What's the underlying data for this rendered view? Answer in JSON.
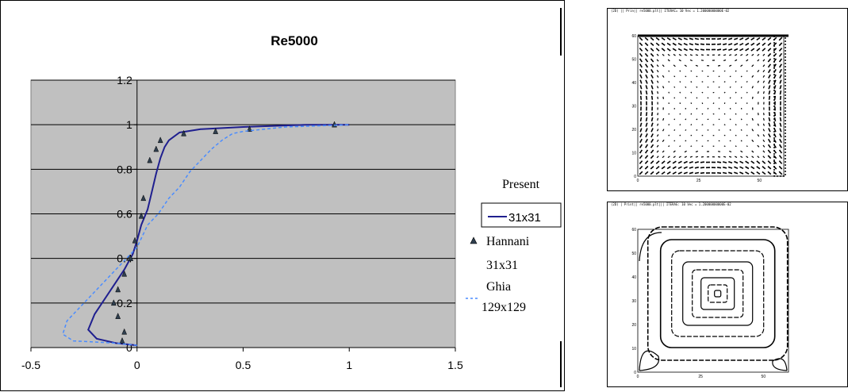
{
  "chart_data": {
    "type": "line",
    "title": "Re5000",
    "xlabel": "",
    "ylabel": "",
    "xlim": [
      -0.5,
      1.5
    ],
    "ylim": [
      0,
      1.2
    ],
    "x_ticks": [
      "-0.5",
      "0",
      "0.5",
      "1",
      "1.5"
    ],
    "y_ticks": [
      "0",
      "0.2",
      "0.4",
      "0.6",
      "0.8",
      "1",
      "1.2"
    ],
    "grid": "horizontal",
    "plot_background": "#c0c0c0",
    "legend_placement": "right",
    "legend_header": "Present",
    "series": [
      {
        "name": "31x31",
        "style": "solid",
        "color": "#1f1f8f",
        "x": [
          0.0,
          -0.1,
          -0.19,
          -0.23,
          -0.2,
          -0.13,
          -0.06,
          -0.02,
          0.0,
          0.02,
          0.05,
          0.07,
          0.09,
          0.11,
          0.13,
          0.15,
          0.2,
          0.3,
          0.5,
          0.8,
          1.0
        ],
        "y": [
          0.01,
          0.02,
          0.04,
          0.08,
          0.15,
          0.25,
          0.35,
          0.42,
          0.48,
          0.55,
          0.62,
          0.7,
          0.78,
          0.85,
          0.9,
          0.93,
          0.965,
          0.98,
          0.99,
          1.0,
          1.0
        ]
      },
      {
        "name": "Hannani 31x31",
        "style": "markers",
        "color": "#2f3f4f",
        "x": [
          -0.07,
          -0.06,
          -0.09,
          -0.11,
          -0.09,
          -0.06,
          -0.03,
          -0.01,
          0.02,
          0.03,
          0.06,
          0.09,
          0.11,
          0.22,
          0.37,
          0.53,
          0.93
        ],
        "y": [
          0.03,
          0.07,
          0.14,
          0.2,
          0.26,
          0.33,
          0.4,
          0.48,
          0.59,
          0.67,
          0.84,
          0.89,
          0.93,
          0.96,
          0.97,
          0.98,
          1.0
        ]
      },
      {
        "name": "Ghia 129x129",
        "style": "dashed",
        "color": "#4a8cff",
        "x": [
          0.0,
          -0.1,
          -0.3,
          -0.35,
          -0.33,
          -0.25,
          -0.15,
          -0.05,
          0.0,
          0.05,
          0.1,
          0.15,
          0.2,
          0.25,
          0.3,
          0.35,
          0.4,
          0.45,
          0.5,
          0.7,
          1.0
        ],
        "y": [
          0.01,
          0.02,
          0.03,
          0.06,
          0.12,
          0.2,
          0.3,
          0.4,
          0.45,
          0.55,
          0.6,
          0.67,
          0.72,
          0.79,
          0.84,
          0.89,
          0.93,
          0.96,
          0.97,
          0.99,
          1.0
        ]
      }
    ],
    "legend": {
      "entries": [
        {
          "label": "31x31",
          "style": "solid"
        },
        {
          "label": "Hannani",
          "label2": "31x31",
          "style": "markers"
        },
        {
          "label": "Ghia",
          "label2": "129x129",
          "style": "dashed"
        }
      ]
    }
  },
  "panels": {
    "vector": {
      "caption": "(2D) || Prin|| re5000.plt|| ITERAC=    10 Vec = 1.20000000000E-02",
      "x_ticks": [
        "0",
        "25",
        "50"
      ],
      "y_ticks": [
        "0",
        "10",
        "20",
        "30",
        "40",
        "50",
        "60"
      ]
    },
    "stream": {
      "caption": "(2D) | Print|| re5000.plt||| ITERAG:    10 Vec = 1.20000000000E-02",
      "x_ticks": [
        "0",
        "25",
        "50"
      ],
      "y_ticks": [
        "0",
        "10",
        "20",
        "30",
        "40",
        "50",
        "60"
      ]
    }
  }
}
